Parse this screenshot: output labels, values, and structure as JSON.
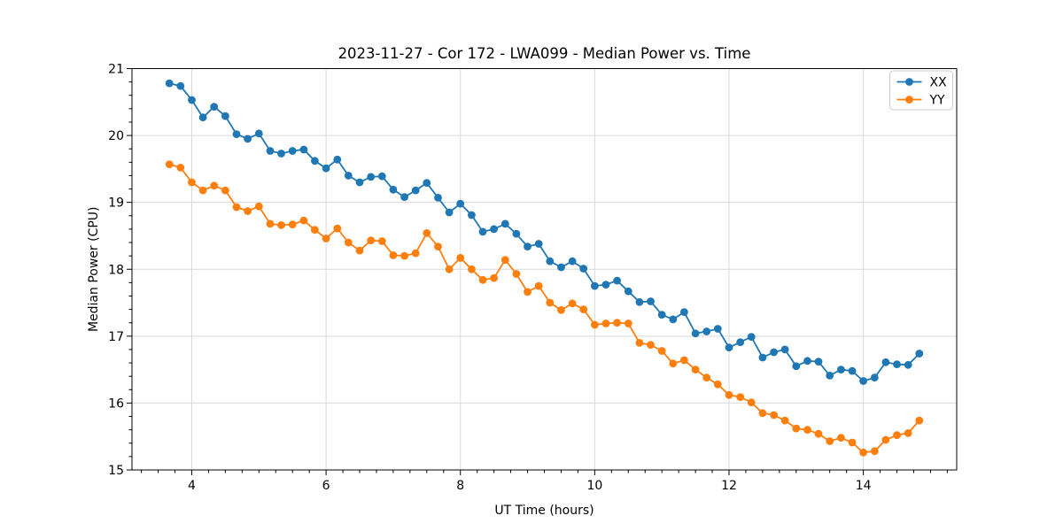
{
  "figure": {
    "background": "#ffffff",
    "text_color": "#000000",
    "grid_color": "#d9d9d9",
    "spine_color": "#000000"
  },
  "chart_data": {
    "type": "line",
    "title": "2023-11-27 - Cor 172 - LWA099 - Median Power vs. Time",
    "xlabel": "UT Time (hours)",
    "ylabel": "Median Power (CPU)",
    "xlim": [
      3.11,
      15.39
    ],
    "ylim": [
      15,
      21
    ],
    "xticks": [
      4,
      6,
      8,
      10,
      12,
      14
    ],
    "yticks": [
      15,
      16,
      17,
      18,
      19,
      20,
      21
    ],
    "x_minor_step": 0.25,
    "y_minor_step": 0.2,
    "grid": true,
    "legend": {
      "position": "upper right",
      "entries": [
        "XX",
        "YY"
      ]
    },
    "x": [
      3.667,
      3.833,
      4.0,
      4.167,
      4.333,
      4.5,
      4.667,
      4.833,
      5.0,
      5.167,
      5.333,
      5.5,
      5.667,
      5.833,
      6.0,
      6.167,
      6.333,
      6.5,
      6.667,
      6.833,
      7.0,
      7.167,
      7.333,
      7.5,
      7.667,
      7.833,
      8.0,
      8.167,
      8.333,
      8.5,
      8.667,
      8.833,
      9.0,
      9.167,
      9.333,
      9.5,
      9.667,
      9.833,
      10.0,
      10.167,
      10.333,
      10.5,
      10.667,
      10.833,
      11.0,
      11.167,
      11.333,
      11.5,
      11.667,
      11.833,
      12.0,
      12.167,
      12.333,
      12.5,
      12.667,
      12.833,
      13.0,
      13.167,
      13.333,
      13.5,
      13.667,
      13.833,
      14.0,
      14.167,
      14.333,
      14.5,
      14.667,
      14.833
    ],
    "series": [
      {
        "name": "XX",
        "color": "#1f77b4",
        "values": [
          20.78,
          20.74,
          20.53,
          20.27,
          20.43,
          20.29,
          20.02,
          19.95,
          20.03,
          19.77,
          19.73,
          19.77,
          19.79,
          19.62,
          19.51,
          19.64,
          19.4,
          19.3,
          19.38,
          19.39,
          19.19,
          19.08,
          19.18,
          19.29,
          19.07,
          18.85,
          18.98,
          18.81,
          18.56,
          18.6,
          18.68,
          18.53,
          18.34,
          18.38,
          18.12,
          18.03,
          18.12,
          18.01,
          17.75,
          17.77,
          17.83,
          17.67,
          17.51,
          17.52,
          17.32,
          17.25,
          17.36,
          17.04,
          17.07,
          17.11,
          16.83,
          16.91,
          16.99,
          16.68,
          16.76,
          16.8,
          16.55,
          16.63,
          16.62,
          16.41,
          16.5,
          16.48,
          16.33,
          16.38,
          16.61,
          16.58,
          16.57,
          16.74
        ]
      },
      {
        "name": "YY",
        "color": "#ff7f0e",
        "values": [
          19.57,
          19.52,
          19.3,
          19.18,
          19.25,
          19.18,
          18.93,
          18.87,
          18.94,
          18.68,
          18.66,
          18.67,
          18.73,
          18.59,
          18.46,
          18.61,
          18.4,
          18.28,
          18.43,
          18.42,
          18.21,
          18.2,
          18.24,
          18.54,
          18.34,
          18.0,
          18.17,
          18.0,
          17.84,
          17.87,
          18.14,
          17.93,
          17.66,
          17.75,
          17.5,
          17.39,
          17.49,
          17.4,
          17.17,
          17.19,
          17.2,
          17.19,
          16.9,
          16.87,
          16.78,
          16.59,
          16.64,
          16.5,
          16.38,
          16.28,
          16.12,
          16.09,
          16.01,
          15.85,
          15.82,
          15.74,
          15.62,
          15.6,
          15.54,
          15.43,
          15.48,
          15.41,
          15.26,
          15.28,
          15.45,
          15.52,
          15.55,
          15.74
        ]
      }
    ]
  }
}
